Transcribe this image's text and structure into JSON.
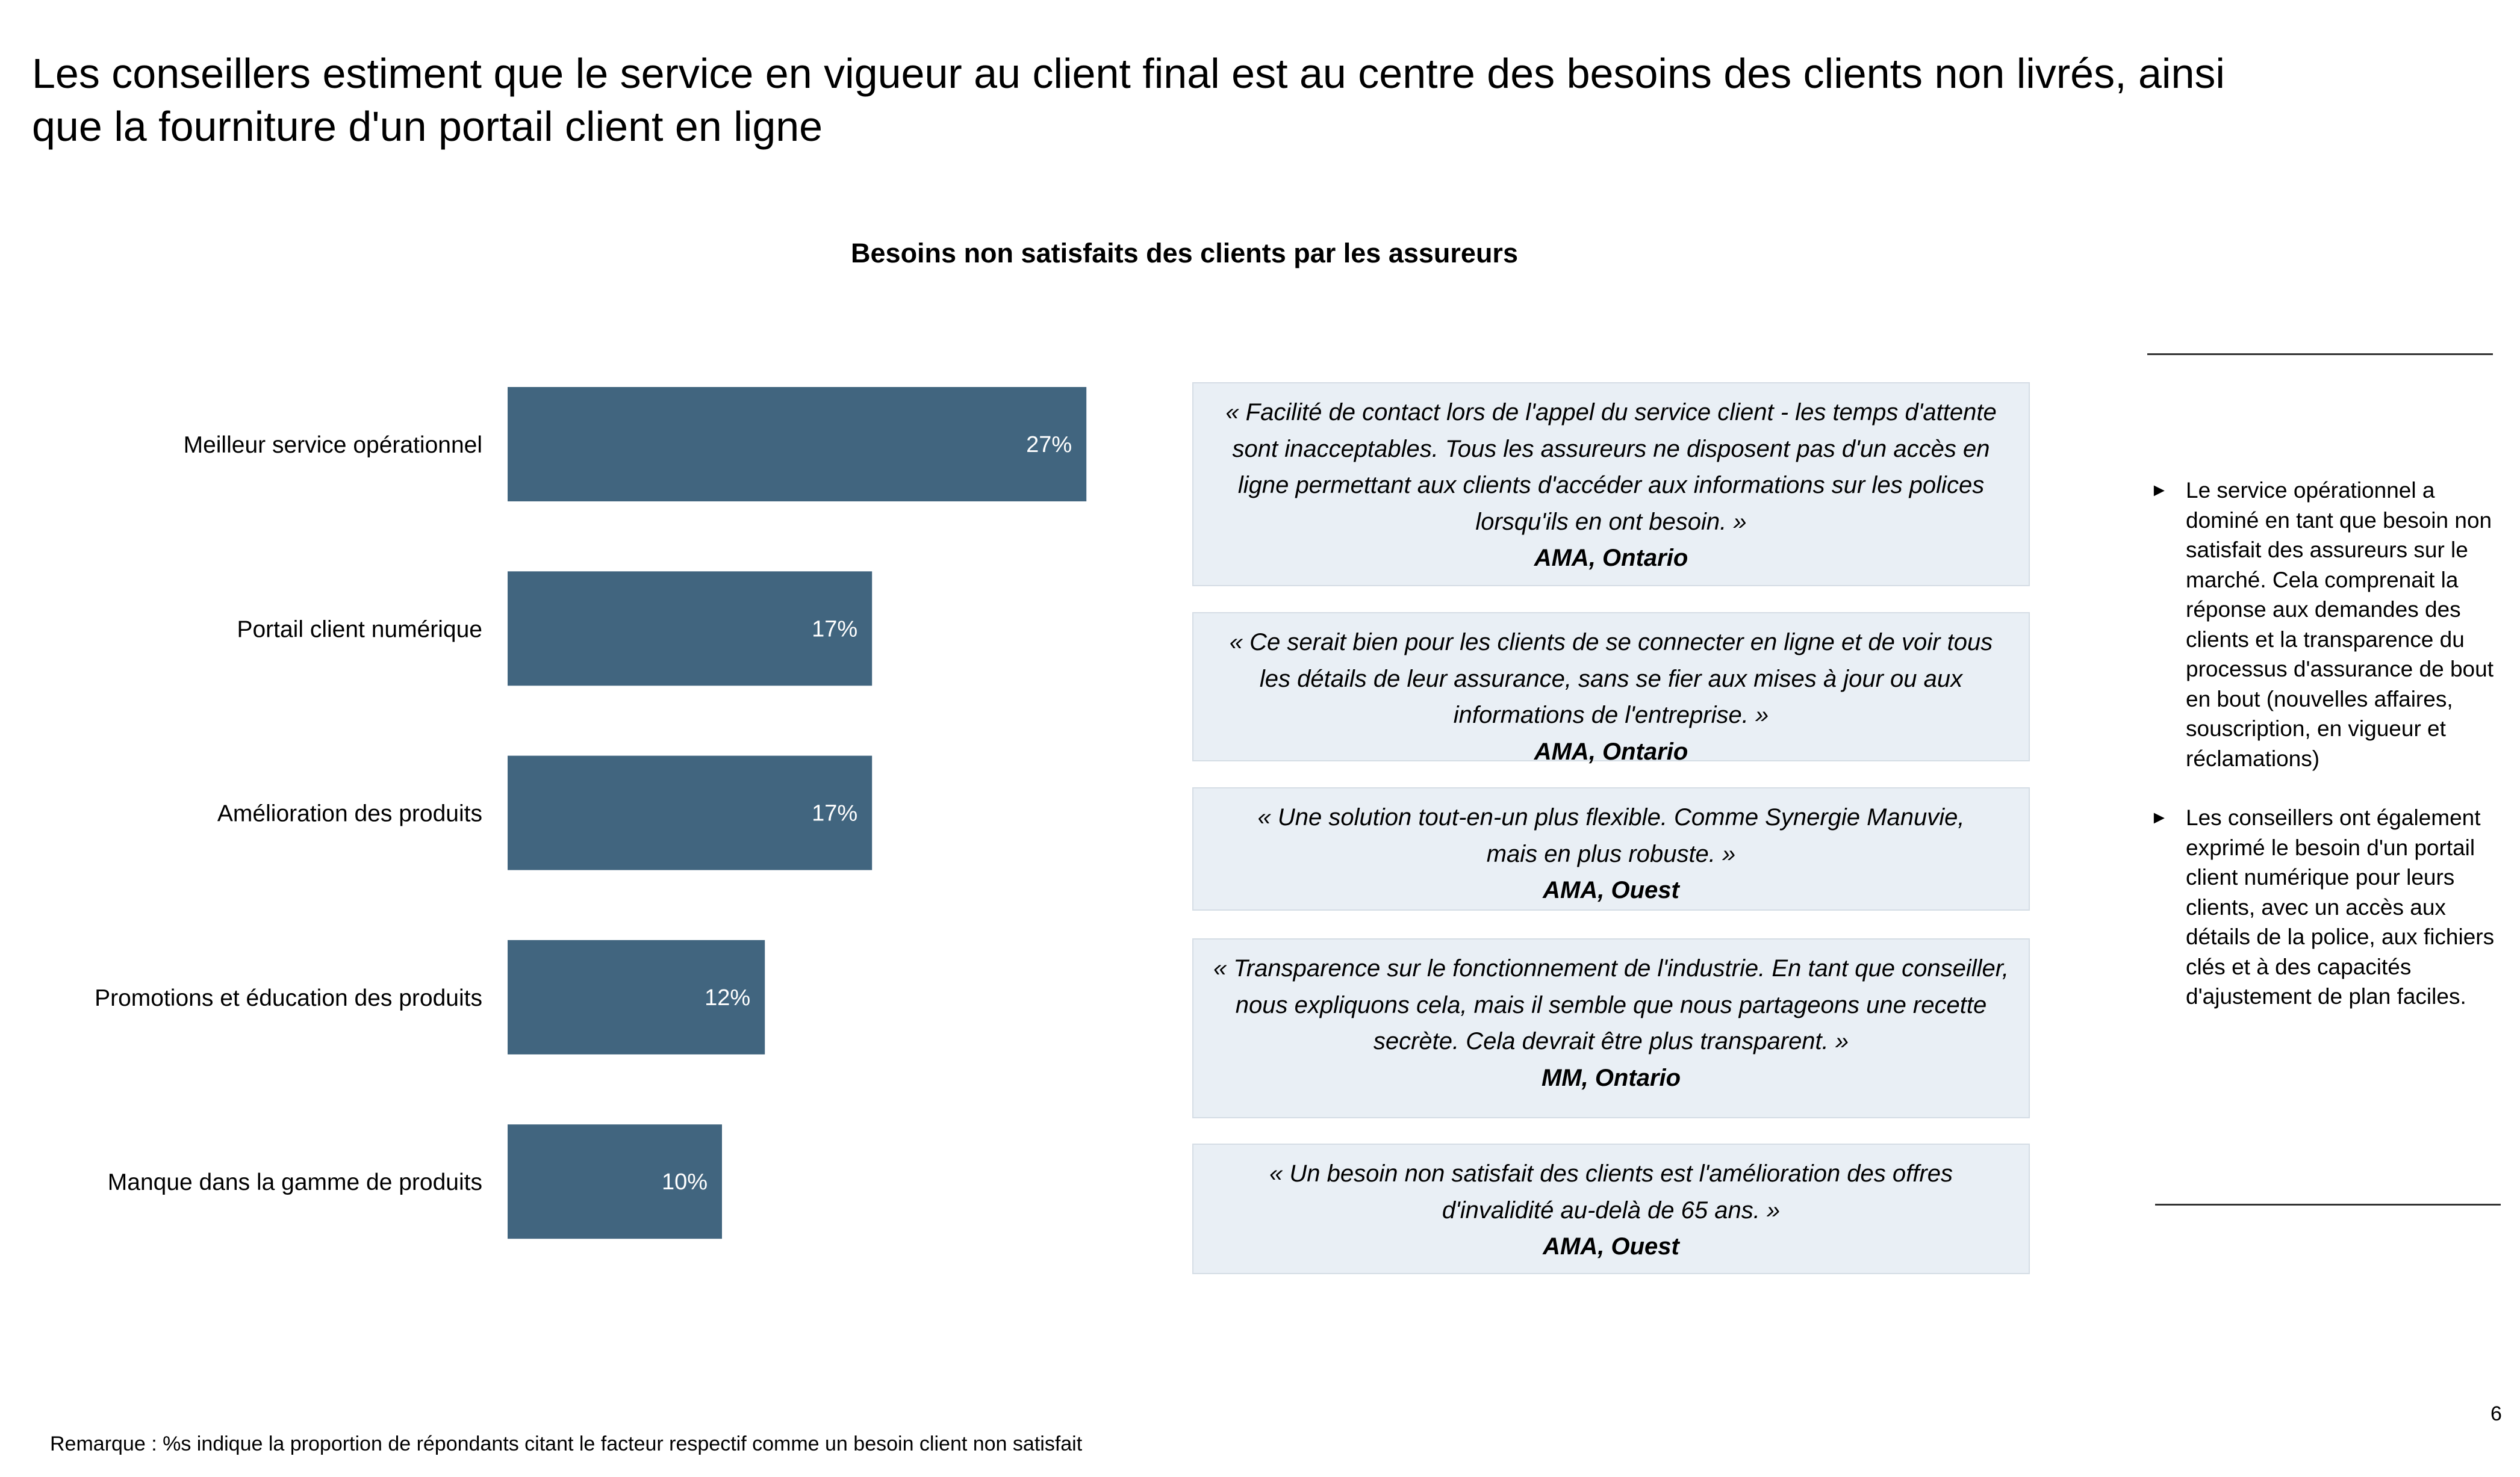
{
  "title": "Les conseillers estiment que le service en vigueur au client final est au centre des besoins des clients non livrés, ainsi que la fourniture d'un portail client en ligne",
  "chart_data": {
    "type": "bar",
    "orientation": "horizontal",
    "title": "Besoins non satisfaits des clients par les assureurs",
    "categories": [
      "Meilleur service opérationnel",
      "Portail client numérique",
      "Amélioration des produits",
      "Promotions et éducation des produits",
      "Manque dans la gamme de produits"
    ],
    "values": [
      27,
      17,
      17,
      12,
      10
    ],
    "labels": [
      "27%",
      "17%",
      "17%",
      "12%",
      "10%"
    ],
    "unit": "%",
    "bar_color": "#41657f",
    "label_color": "#ffffff",
    "grid": false
  },
  "quotes": [
    {
      "text": "« Facilité de contact lors de l'appel du service client - les temps d'attente sont inacceptables. Tous les assureurs ne disposent pas d'un accès en ligne permettant aux clients d'accéder aux informations sur les polices lorsqu'ils en ont besoin. »",
      "source": "AMA, Ontario"
    },
    {
      "text": "« Ce serait bien pour les clients de se connecter en ligne et de voir tous les détails de leur assurance, sans se fier aux mises à jour ou aux informations de l'entreprise. »",
      "source": "AMA, Ontario"
    },
    {
      "text": "« Une solution tout-en-un plus flexible. Comme Synergie Manuvie, mais en plus robuste. »",
      "source": "AMA, Ouest"
    },
    {
      "text": "« Transparence sur le fonctionnement de l'industrie. En tant que conseiller, nous expliquons cela, mais il semble que nous partageons une recette secrète. Cela devrait être plus transparent. »",
      "source": "MM, Ontario"
    },
    {
      "text": "« Un besoin non satisfait des clients est l'amélioration des offres d'invalidité au-delà de 65 ans. »",
      "source": "AMA, Ouest"
    }
  ],
  "takeaways": {
    "bullet_icon": "triangle-right-icon",
    "items": [
      "Le service opérationnel a dominé en tant que besoin non satisfait des assureurs sur le marché. Cela comprenait la réponse aux demandes des clients et la transparence du processus d'assurance de bout en bout (nouvelles affaires, souscription, en vigueur et réclamations)",
      "Les conseillers ont également exprimé le besoin d'un portail client numérique pour leurs clients, avec un accès aux détails de la police, aux fichiers clés et à des capacités d'ajustement de plan faciles."
    ]
  },
  "footnote": "Remarque : %s indique la proportion de répondants citant le facteur respectif comme un besoin client non satisfait",
  "page_number": "6"
}
